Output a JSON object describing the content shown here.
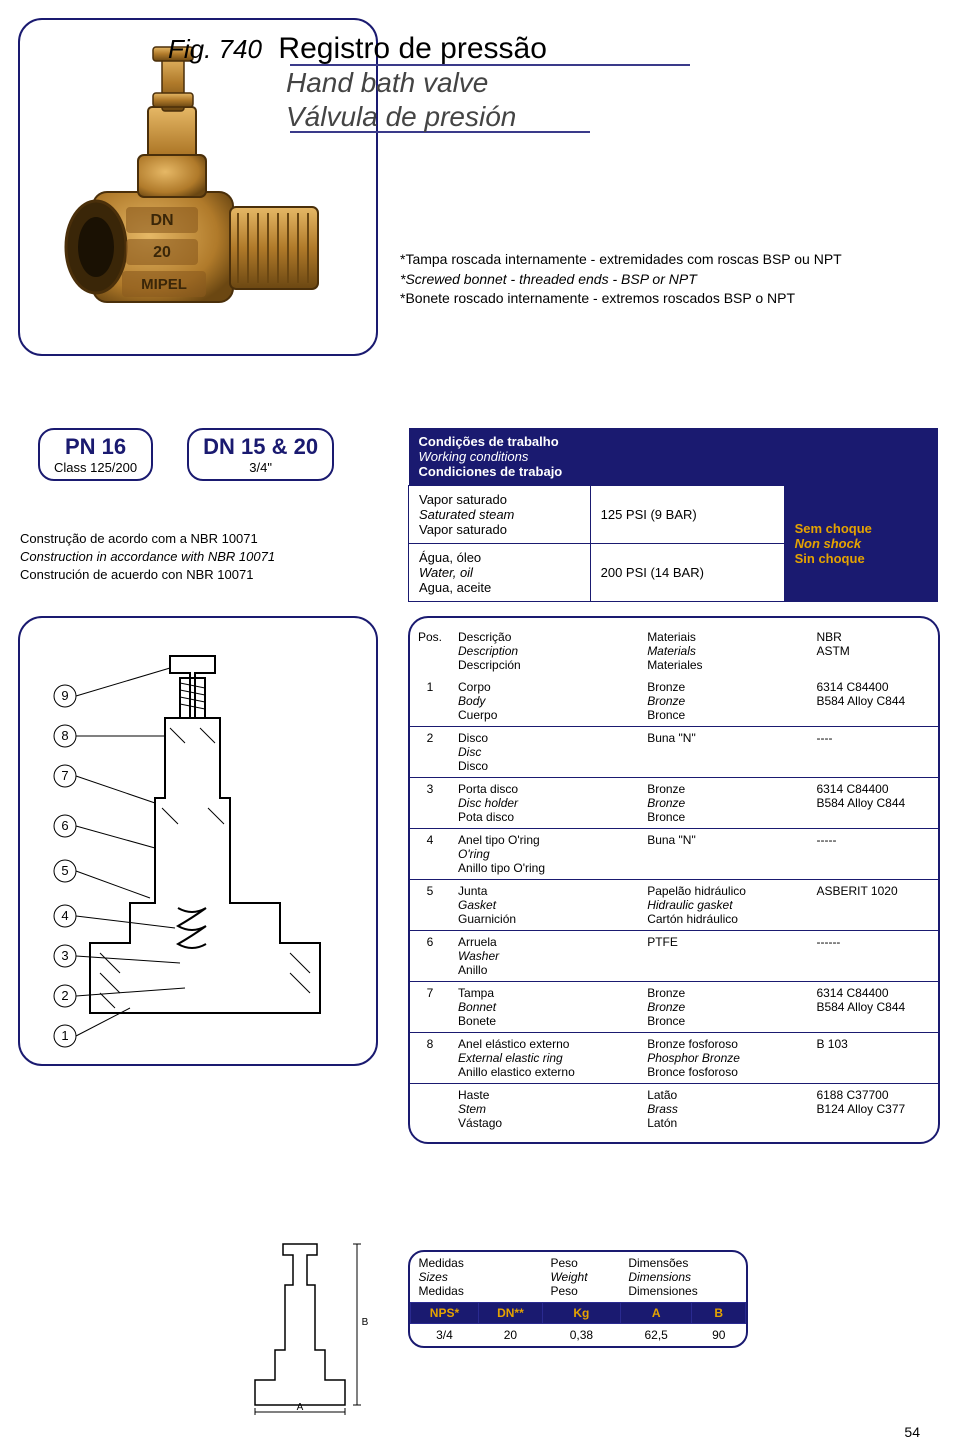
{
  "fig_label": "Fig. 740",
  "title": {
    "main": "Registro de pressão",
    "sub_en": "Hand bath valve",
    "sub_es": "Válvula de presión"
  },
  "notes": {
    "pt": "*Tampa roscada internamente - extremidades com roscas BSP ou NPT",
    "en": "*Screwed bonnet - threaded ends - BSP or NPT",
    "es": "*Bonete roscado internamente - extremos roscados BSP o NPT"
  },
  "pn": {
    "left_big": "PN 16",
    "left_small": "Class 125/200",
    "right_big": "DN 15 & 20",
    "right_small": "3/4\""
  },
  "constr": {
    "pt": "Construção de acordo com a NBR 10071",
    "en": "Construction in accordance with NBR 10071",
    "es": "Construción de acuerdo con NBR 10071"
  },
  "cond": {
    "hdr_pt": "Condições de trabalho",
    "hdr_en": "Working conditions",
    "hdr_es": "Condiciones de trabajo",
    "r1_pt": "Vapor saturado",
    "r1_en": "Saturated steam",
    "r1_es": "Vapor saturado",
    "r1_val": "125 PSI (9 BAR)",
    "r2_pt": "Água, óleo",
    "r2_en": "Water, oil",
    "r2_es": "Agua, aceite",
    "r2_val": "200 PSI (14 BAR)",
    "ns_pt": "Sem choque",
    "ns_en": "Non shock",
    "ns_es": "Sin choque"
  },
  "materials": {
    "hdr_desc_pt": "Descrição",
    "hdr_desc_en": "Description",
    "hdr_desc_es": "Descripción",
    "hdr_mat_pt": "Materiais",
    "hdr_mat_en": "Materials",
    "hdr_mat_es": "Materiales",
    "hdr_std1": "NBR",
    "hdr_std2": "ASTM",
    "rows": [
      {
        "pos": "1",
        "d_pt": "Corpo",
        "d_en": "Body",
        "d_es": "Cuerpo",
        "m_pt": "Bronze",
        "m_en": "Bronze",
        "m_es": "Bronce",
        "s1": "6314 C84400",
        "s2": "B584 Alloy C844"
      },
      {
        "pos": "2",
        "d_pt": "Disco",
        "d_en": "Disc",
        "d_es": "Disco",
        "m_pt": "Buna \"N\"",
        "m_en": "",
        "m_es": "",
        "s1": "----",
        "s2": ""
      },
      {
        "pos": "3",
        "d_pt": "Porta disco",
        "d_en": "Disc holder",
        "d_es": "Pota disco",
        "m_pt": "Bronze",
        "m_en": "Bronze",
        "m_es": "Bronce",
        "s1": "6314 C84400",
        "s2": "B584 Alloy C844"
      },
      {
        "pos": "4",
        "d_pt": "Anel tipo O'ring",
        "d_en": "O'ring",
        "d_es": "Anillo tipo O'ring",
        "m_pt": "Buna \"N\"",
        "m_en": "",
        "m_es": "",
        "s1": "-----",
        "s2": ""
      },
      {
        "pos": "5",
        "d_pt": "Junta",
        "d_en": "Gasket",
        "d_es": "Guarnición",
        "m_pt": "Papelão hidráulico",
        "m_en": "Hidraulic gasket",
        "m_es": "Cartón hidráulico",
        "s1": "ASBERIT 1020",
        "s2": ""
      },
      {
        "pos": "6",
        "d_pt": "Arruela",
        "d_en": "Washer",
        "d_es": "Anillo",
        "m_pt": "PTFE",
        "m_en": "",
        "m_es": "",
        "s1": "------",
        "s2": ""
      },
      {
        "pos": "7",
        "d_pt": "Tampa",
        "d_en": "Bonnet",
        "d_es": "Bonete",
        "m_pt": "Bronze",
        "m_en": "Bronze",
        "m_es": "Bronce",
        "s1": "6314 C84400",
        "s2": "B584 Alloy C844"
      },
      {
        "pos": "8",
        "d_pt": "Anel elástico externo",
        "d_en": "External elastic ring",
        "d_es": "Anillo elastico externo",
        "m_pt": "Bronze fosforoso",
        "m_en": "Phosphor Bronze",
        "m_es": "Bronce fosforoso",
        "s1": "B 103",
        "s2": ""
      },
      {
        "pos": "",
        "d_pt": "Haste",
        "d_en": "Stem",
        "d_es": "Vástago",
        "m_pt": "Latão",
        "m_en": "Brass",
        "m_es": "Latón",
        "s1": "6188 C37700",
        "s2": "B124 Alloy C377"
      }
    ]
  },
  "sizes": {
    "hdr_size_pt": "Medidas",
    "hdr_size_en": "Sizes",
    "hdr_size_es": "Medidas",
    "hdr_wt_pt": "Peso",
    "hdr_wt_en": "Weight",
    "hdr_wt_es": "Peso",
    "hdr_dim_pt": "Dimensões",
    "hdr_dim_en": "Dimensions",
    "hdr_dim_es": "Dimensiones",
    "c1": "NPS*",
    "c2": "DN**",
    "c3": "Kg",
    "c4": "A",
    "c5": "B",
    "v1": "3/4",
    "v2": "20",
    "v3": "0,38",
    "v4": "62,5",
    "v5": "90"
  },
  "page": "54",
  "colors": {
    "navy": "#1a1a70",
    "gold": "#e5a300",
    "bronze_light": "#d9a655",
    "bronze_dark": "#8a5a1e"
  }
}
